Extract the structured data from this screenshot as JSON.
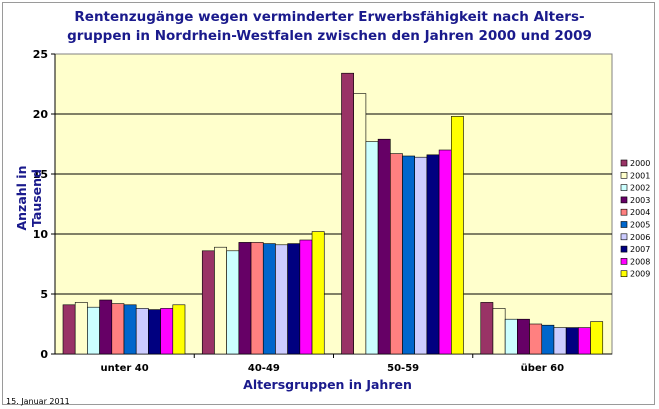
{
  "chart_data": {
    "type": "bar",
    "title": "Rentenzugänge wegen verminderter Erwerbsfähigkeit nach Alters-\ngruppen in Nordrhein-Westfalen zwischen den Jahren 2000 und 2009",
    "xlabel": "Altersgruppen in Jahren",
    "ylabel": "Anzahl in Tausend",
    "ylim": [
      0,
      25
    ],
    "yticks": [
      "0",
      "5",
      "10",
      "15",
      "20",
      "25"
    ],
    "grid": true,
    "legend_position": "right",
    "categories": [
      "unter 40",
      "40-49",
      "50-59",
      "über 60"
    ],
    "series": [
      {
        "name": "2000",
        "color": "#993366",
        "values": [
          4.1,
          8.6,
          23.4,
          4.3
        ]
      },
      {
        "name": "2001",
        "color": "#ffffcc",
        "values": [
          4.3,
          8.9,
          21.7,
          3.8
        ]
      },
      {
        "name": "2002",
        "color": "#ccffff",
        "values": [
          3.9,
          8.6,
          17.7,
          2.9
        ]
      },
      {
        "name": "2003",
        "color": "#660066",
        "values": [
          4.5,
          9.3,
          17.9,
          2.9
        ]
      },
      {
        "name": "2004",
        "color": "#ff8080",
        "values": [
          4.2,
          9.3,
          16.7,
          2.5
        ]
      },
      {
        "name": "2005",
        "color": "#0066cc",
        "values": [
          4.1,
          9.2,
          16.5,
          2.4
        ]
      },
      {
        "name": "2006",
        "color": "#ccccff",
        "values": [
          3.8,
          9.1,
          16.4,
          2.2
        ]
      },
      {
        "name": "2007",
        "color": "#000080",
        "values": [
          3.7,
          9.2,
          16.6,
          2.2
        ]
      },
      {
        "name": "2008",
        "color": "#ff00ff",
        "values": [
          3.8,
          9.5,
          17.0,
          2.2
        ]
      },
      {
        "name": "2009",
        "color": "#ffff00",
        "values": [
          4.1,
          10.2,
          19.8,
          2.7
        ]
      }
    ],
    "plot_background": "#ffffcc",
    "title_color": "#1a1a8c"
  },
  "footer_date": "15. Januar 2011"
}
